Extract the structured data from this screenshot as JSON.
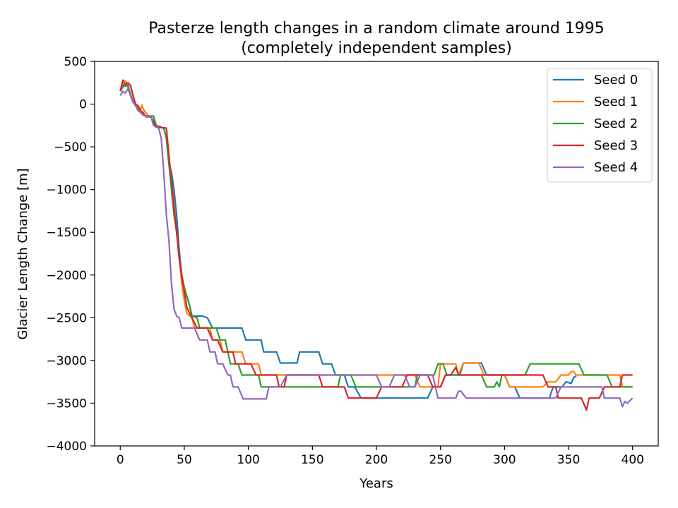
{
  "chart_data": {
    "type": "line",
    "title": "Pasterze length changes in a random climate around 1995",
    "subtitle": "(completely independent samples)",
    "xlabel": "Years",
    "ylabel": "Glacier Length Change [m]",
    "xlim": [
      -20,
      420
    ],
    "ylim": [
      -4000,
      500
    ],
    "xticks": [
      0,
      50,
      100,
      150,
      200,
      250,
      300,
      350,
      400
    ],
    "xtick_labels": [
      "0",
      "50",
      "100",
      "150",
      "200",
      "250",
      "300",
      "350",
      "400"
    ],
    "yticks": [
      500,
      0,
      -500,
      -1000,
      -1500,
      -2000,
      -2500,
      -3000,
      -3500,
      -4000
    ],
    "ytick_labels": [
      "500",
      "0",
      "−500",
      "−1000",
      "−1500",
      "−2000",
      "−2500",
      "−3000",
      "−3500",
      "−4000"
    ],
    "grid": false,
    "legend_position": "top-right",
    "series": [
      {
        "name": "Seed 0",
        "color": "#1f77b4",
        "points": [
          [
            0,
            150
          ],
          [
            2,
            230
          ],
          [
            4,
            210
          ],
          [
            6,
            230
          ],
          [
            8,
            100
          ],
          [
            10,
            20
          ],
          [
            12,
            -10
          ],
          [
            14,
            -60
          ],
          [
            16,
            -100
          ],
          [
            18,
            -130
          ],
          [
            20,
            -140
          ],
          [
            24,
            -150
          ],
          [
            26,
            -200
          ],
          [
            28,
            -250
          ],
          [
            30,
            -260
          ],
          [
            32,
            -270
          ],
          [
            34,
            -280
          ],
          [
            36,
            -400
          ],
          [
            38,
            -700
          ],
          [
            40,
            -800
          ],
          [
            42,
            -1000
          ],
          [
            44,
            -1300
          ],
          [
            46,
            -1700
          ],
          [
            48,
            -2000
          ],
          [
            50,
            -2150
          ],
          [
            52,
            -2250
          ],
          [
            54,
            -2350
          ],
          [
            56,
            -2480
          ],
          [
            60,
            -2480
          ],
          [
            64,
            -2480
          ],
          [
            68,
            -2500
          ],
          [
            72,
            -2620
          ],
          [
            80,
            -2620
          ],
          [
            95,
            -2620
          ],
          [
            98,
            -2760
          ],
          [
            110,
            -2760
          ],
          [
            112,
            -2900
          ],
          [
            122,
            -2900
          ],
          [
            125,
            -3030
          ],
          [
            138,
            -3030
          ],
          [
            140,
            -2900
          ],
          [
            155,
            -2900
          ],
          [
            158,
            -3040
          ],
          [
            165,
            -3040
          ],
          [
            168,
            -3170
          ],
          [
            175,
            -3170
          ],
          [
            178,
            -3310
          ],
          [
            183,
            -3310
          ],
          [
            188,
            -3440
          ],
          [
            240,
            -3440
          ],
          [
            244,
            -3310
          ],
          [
            250,
            -3310
          ],
          [
            254,
            -3170
          ],
          [
            265,
            -3170
          ],
          [
            268,
            -3030
          ],
          [
            282,
            -3030
          ],
          [
            286,
            -3170
          ],
          [
            300,
            -3170
          ],
          [
            304,
            -3310
          ],
          [
            308,
            -3310
          ],
          [
            312,
            -3440
          ],
          [
            335,
            -3440
          ],
          [
            338,
            -3310
          ],
          [
            345,
            -3310
          ],
          [
            348,
            -3250
          ],
          [
            352,
            -3270
          ],
          [
            354,
            -3200
          ],
          [
            356,
            -3180
          ]
        ]
      },
      {
        "name": "Seed 1",
        "color": "#ff7f0e",
        "points": [
          [
            0,
            150
          ],
          [
            2,
            270
          ],
          [
            4,
            270
          ],
          [
            6,
            230
          ],
          [
            8,
            220
          ],
          [
            10,
            100
          ],
          [
            12,
            -10
          ],
          [
            14,
            -40
          ],
          [
            16,
            -60
          ],
          [
            17,
            -10
          ],
          [
            18,
            -60
          ],
          [
            20,
            -100
          ],
          [
            22,
            -140
          ],
          [
            26,
            -140
          ],
          [
            28,
            -250
          ],
          [
            30,
            -270
          ],
          [
            34,
            -280
          ],
          [
            36,
            -400
          ],
          [
            38,
            -700
          ],
          [
            40,
            -900
          ],
          [
            42,
            -1200
          ],
          [
            44,
            -1500
          ],
          [
            46,
            -1800
          ],
          [
            48,
            -2100
          ],
          [
            50,
            -2300
          ],
          [
            52,
            -2450
          ],
          [
            56,
            -2500
          ],
          [
            58,
            -2620
          ],
          [
            70,
            -2620
          ],
          [
            72,
            -2760
          ],
          [
            78,
            -2760
          ],
          [
            80,
            -2900
          ],
          [
            95,
            -2900
          ],
          [
            98,
            -3040
          ],
          [
            108,
            -3040
          ],
          [
            110,
            -3170
          ],
          [
            230,
            -3170
          ],
          [
            234,
            -3310
          ],
          [
            248,
            -3310
          ],
          [
            250,
            -3040
          ],
          [
            262,
            -3040
          ],
          [
            264,
            -3170
          ],
          [
            268,
            -3030
          ],
          [
            280,
            -3030
          ],
          [
            284,
            -3170
          ],
          [
            300,
            -3170
          ],
          [
            304,
            -3310
          ],
          [
            330,
            -3310
          ],
          [
            334,
            -3250
          ],
          [
            340,
            -3250
          ],
          [
            344,
            -3170
          ],
          [
            350,
            -3170
          ],
          [
            352,
            -3130
          ],
          [
            354,
            -3130
          ],
          [
            356,
            -3170
          ],
          [
            390,
            -3170
          ],
          [
            392,
            -3310
          ],
          [
            400,
            -3310
          ]
        ]
      },
      {
        "name": "Seed 2",
        "color": "#2ca02c",
        "points": [
          [
            0,
            150
          ],
          [
            2,
            200
          ],
          [
            4,
            220
          ],
          [
            6,
            200
          ],
          [
            8,
            120
          ],
          [
            10,
            30
          ],
          [
            12,
            -20
          ],
          [
            14,
            -60
          ],
          [
            16,
            -100
          ],
          [
            18,
            -120
          ],
          [
            20,
            -140
          ],
          [
            26,
            -140
          ],
          [
            28,
            -250
          ],
          [
            30,
            -270
          ],
          [
            34,
            -280
          ],
          [
            36,
            -400
          ],
          [
            38,
            -700
          ],
          [
            40,
            -1000
          ],
          [
            42,
            -1300
          ],
          [
            44,
            -1500
          ],
          [
            46,
            -1800
          ],
          [
            48,
            -2000
          ],
          [
            50,
            -2150
          ],
          [
            52,
            -2250
          ],
          [
            54,
            -2350
          ],
          [
            56,
            -2480
          ],
          [
            60,
            -2500
          ],
          [
            62,
            -2620
          ],
          [
            75,
            -2620
          ],
          [
            78,
            -2760
          ],
          [
            82,
            -2760
          ],
          [
            86,
            -3040
          ],
          [
            92,
            -3040
          ],
          [
            95,
            -3170
          ],
          [
            108,
            -3170
          ],
          [
            110,
            -3310
          ],
          [
            170,
            -3310
          ],
          [
            172,
            -3170
          ],
          [
            180,
            -3170
          ],
          [
            184,
            -3310
          ],
          [
            230,
            -3310
          ],
          [
            232,
            -3170
          ],
          [
            245,
            -3170
          ],
          [
            248,
            -3040
          ],
          [
            252,
            -3040
          ],
          [
            255,
            -3170
          ],
          [
            282,
            -3170
          ],
          [
            286,
            -3310
          ],
          [
            292,
            -3310
          ],
          [
            294,
            -3250
          ],
          [
            296,
            -3310
          ],
          [
            298,
            -3170
          ],
          [
            316,
            -3170
          ],
          [
            320,
            -3040
          ],
          [
            358,
            -3040
          ],
          [
            362,
            -3170
          ],
          [
            380,
            -3170
          ],
          [
            384,
            -3310
          ],
          [
            400,
            -3310
          ]
        ]
      },
      {
        "name": "Seed 3",
        "color": "#d62728",
        "points": [
          [
            0,
            150
          ],
          [
            2,
            280
          ],
          [
            4,
            230
          ],
          [
            6,
            250
          ],
          [
            8,
            220
          ],
          [
            10,
            100
          ],
          [
            12,
            0
          ],
          [
            14,
            -20
          ],
          [
            16,
            -80
          ],
          [
            18,
            -100
          ],
          [
            20,
            -150
          ],
          [
            24,
            -150
          ],
          [
            26,
            -220
          ],
          [
            28,
            -260
          ],
          [
            30,
            -270
          ],
          [
            36,
            -280
          ],
          [
            38,
            -600
          ],
          [
            40,
            -900
          ],
          [
            42,
            -1200
          ],
          [
            44,
            -1500
          ],
          [
            46,
            -1800
          ],
          [
            48,
            -2000
          ],
          [
            50,
            -2200
          ],
          [
            52,
            -2380
          ],
          [
            56,
            -2500
          ],
          [
            60,
            -2620
          ],
          [
            68,
            -2620
          ],
          [
            72,
            -2760
          ],
          [
            76,
            -2760
          ],
          [
            80,
            -2900
          ],
          [
            88,
            -2900
          ],
          [
            90,
            -3040
          ],
          [
            102,
            -3040
          ],
          [
            106,
            -3170
          ],
          [
            122,
            -3170
          ],
          [
            124,
            -3310
          ],
          [
            128,
            -3310
          ],
          [
            130,
            -3170
          ],
          [
            155,
            -3170
          ],
          [
            158,
            -3310
          ],
          [
            175,
            -3310
          ],
          [
            178,
            -3440
          ],
          [
            200,
            -3440
          ],
          [
            204,
            -3310
          ],
          [
            220,
            -3310
          ],
          [
            224,
            -3170
          ],
          [
            240,
            -3170
          ],
          [
            244,
            -3310
          ],
          [
            250,
            -3310
          ],
          [
            254,
            -3170
          ],
          [
            258,
            -3170
          ],
          [
            262,
            -3080
          ],
          [
            264,
            -3170
          ],
          [
            330,
            -3170
          ],
          [
            334,
            -3310
          ],
          [
            340,
            -3310
          ],
          [
            342,
            -3440
          ],
          [
            360,
            -3440
          ],
          [
            364,
            -3580
          ],
          [
            366,
            -3440
          ],
          [
            374,
            -3440
          ],
          [
            378,
            -3310
          ],
          [
            390,
            -3310
          ],
          [
            392,
            -3170
          ],
          [
            400,
            -3170
          ]
        ]
      },
      {
        "name": "Seed 4",
        "color": "#9467bd",
        "points": [
          [
            0,
            100
          ],
          [
            2,
            150
          ],
          [
            4,
            130
          ],
          [
            6,
            180
          ],
          [
            8,
            100
          ],
          [
            10,
            30
          ],
          [
            12,
            -20
          ],
          [
            14,
            -80
          ],
          [
            16,
            -100
          ],
          [
            18,
            -130
          ],
          [
            20,
            -140
          ],
          [
            24,
            -150
          ],
          [
            26,
            -250
          ],
          [
            28,
            -270
          ],
          [
            30,
            -280
          ],
          [
            32,
            -400
          ],
          [
            34,
            -800
          ],
          [
            36,
            -1300
          ],
          [
            38,
            -1600
          ],
          [
            40,
            -2100
          ],
          [
            42,
            -2400
          ],
          [
            44,
            -2480
          ],
          [
            46,
            -2500
          ],
          [
            48,
            -2620
          ],
          [
            58,
            -2620
          ],
          [
            62,
            -2760
          ],
          [
            68,
            -2760
          ],
          [
            70,
            -2900
          ],
          [
            74,
            -2900
          ],
          [
            76,
            -3040
          ],
          [
            80,
            -3040
          ],
          [
            84,
            -3170
          ],
          [
            86,
            -3170
          ],
          [
            88,
            -3310
          ],
          [
            92,
            -3310
          ],
          [
            96,
            -3450
          ],
          [
            114,
            -3450
          ],
          [
            116,
            -3310
          ],
          [
            125,
            -3310
          ],
          [
            130,
            -3170
          ],
          [
            200,
            -3170
          ],
          [
            204,
            -3310
          ],
          [
            210,
            -3310
          ],
          [
            214,
            -3170
          ],
          [
            222,
            -3170
          ],
          [
            226,
            -3310
          ],
          [
            230,
            -3310
          ],
          [
            234,
            -3170
          ],
          [
            244,
            -3170
          ],
          [
            248,
            -3440
          ],
          [
            262,
            -3440
          ],
          [
            264,
            -3360
          ],
          [
            266,
            -3360
          ],
          [
            270,
            -3440
          ],
          [
            340,
            -3440
          ],
          [
            344,
            -3310
          ],
          [
            376,
            -3310
          ],
          [
            378,
            -3440
          ],
          [
            390,
            -3440
          ],
          [
            392,
            -3540
          ],
          [
            394,
            -3480
          ],
          [
            396,
            -3500
          ],
          [
            400,
            -3440
          ]
        ]
      }
    ]
  }
}
